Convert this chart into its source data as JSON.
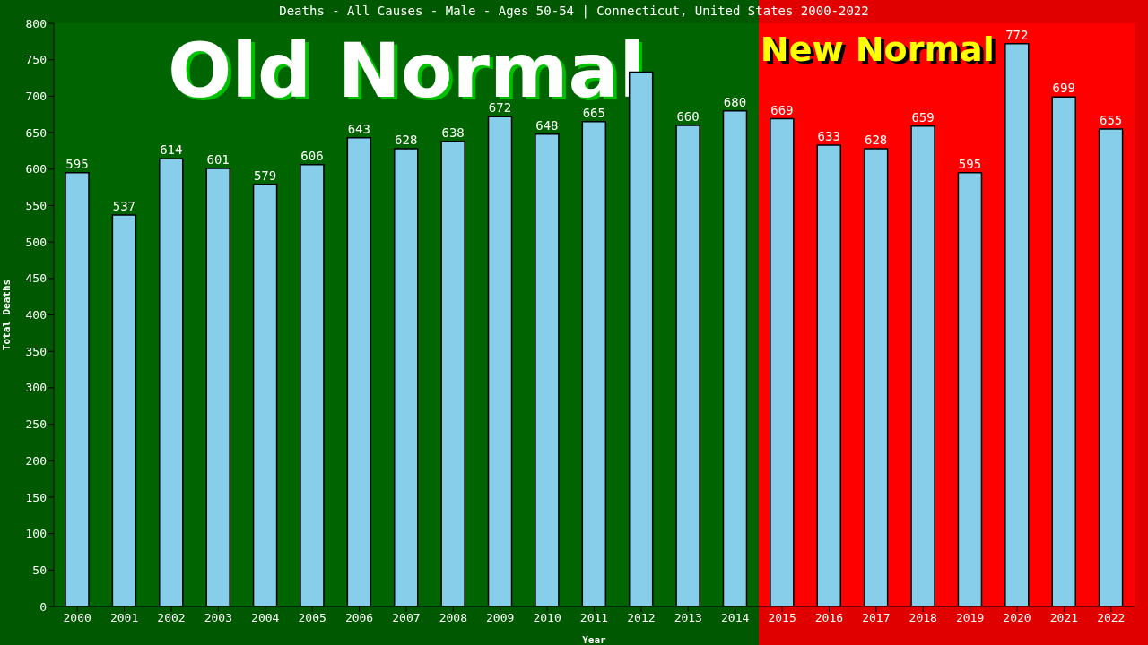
{
  "chart_data": {
    "type": "bar",
    "title": "Deaths - All Causes - Male - Ages 50-54 | Connecticut, United States 2000-2022",
    "xlabel": "Year",
    "ylabel": "Total Deaths",
    "categories": [
      "2000",
      "2001",
      "2002",
      "2003",
      "2004",
      "2005",
      "2006",
      "2007",
      "2008",
      "2009",
      "2010",
      "2011",
      "2012",
      "2013",
      "2014",
      "2015",
      "2016",
      "2017",
      "2018",
      "2019",
      "2020",
      "2021",
      "2022"
    ],
    "values": [
      595,
      537,
      614,
      601,
      579,
      606,
      643,
      628,
      638,
      672,
      648,
      665,
      733,
      660,
      680,
      669,
      633,
      628,
      659,
      595,
      772,
      699,
      655
    ],
    "value_labels": [
      "595",
      "537",
      "614",
      "601",
      "579",
      "606",
      "643",
      "628",
      "638",
      "672",
      "648",
      "665",
      null,
      "660",
      "680",
      "669",
      "633",
      "628",
      "659",
      "595",
      "772",
      "699",
      "655"
    ],
    "color": "#87ceeb",
    "ylim": [
      0,
      800
    ],
    "yticks": [
      0,
      50,
      100,
      150,
      200,
      250,
      300,
      350,
      400,
      450,
      500,
      550,
      600,
      650,
      700,
      750,
      800
    ],
    "grid": false,
    "legend": false,
    "bands": [
      {
        "axis": "x",
        "from": "2000",
        "to": "2014",
        "label": "Old Normal",
        "color": "#006400"
      },
      {
        "axis": "x",
        "from": "2015",
        "to": "2022",
        "label": "New Normal",
        "color": "#ff0000"
      }
    ]
  }
}
